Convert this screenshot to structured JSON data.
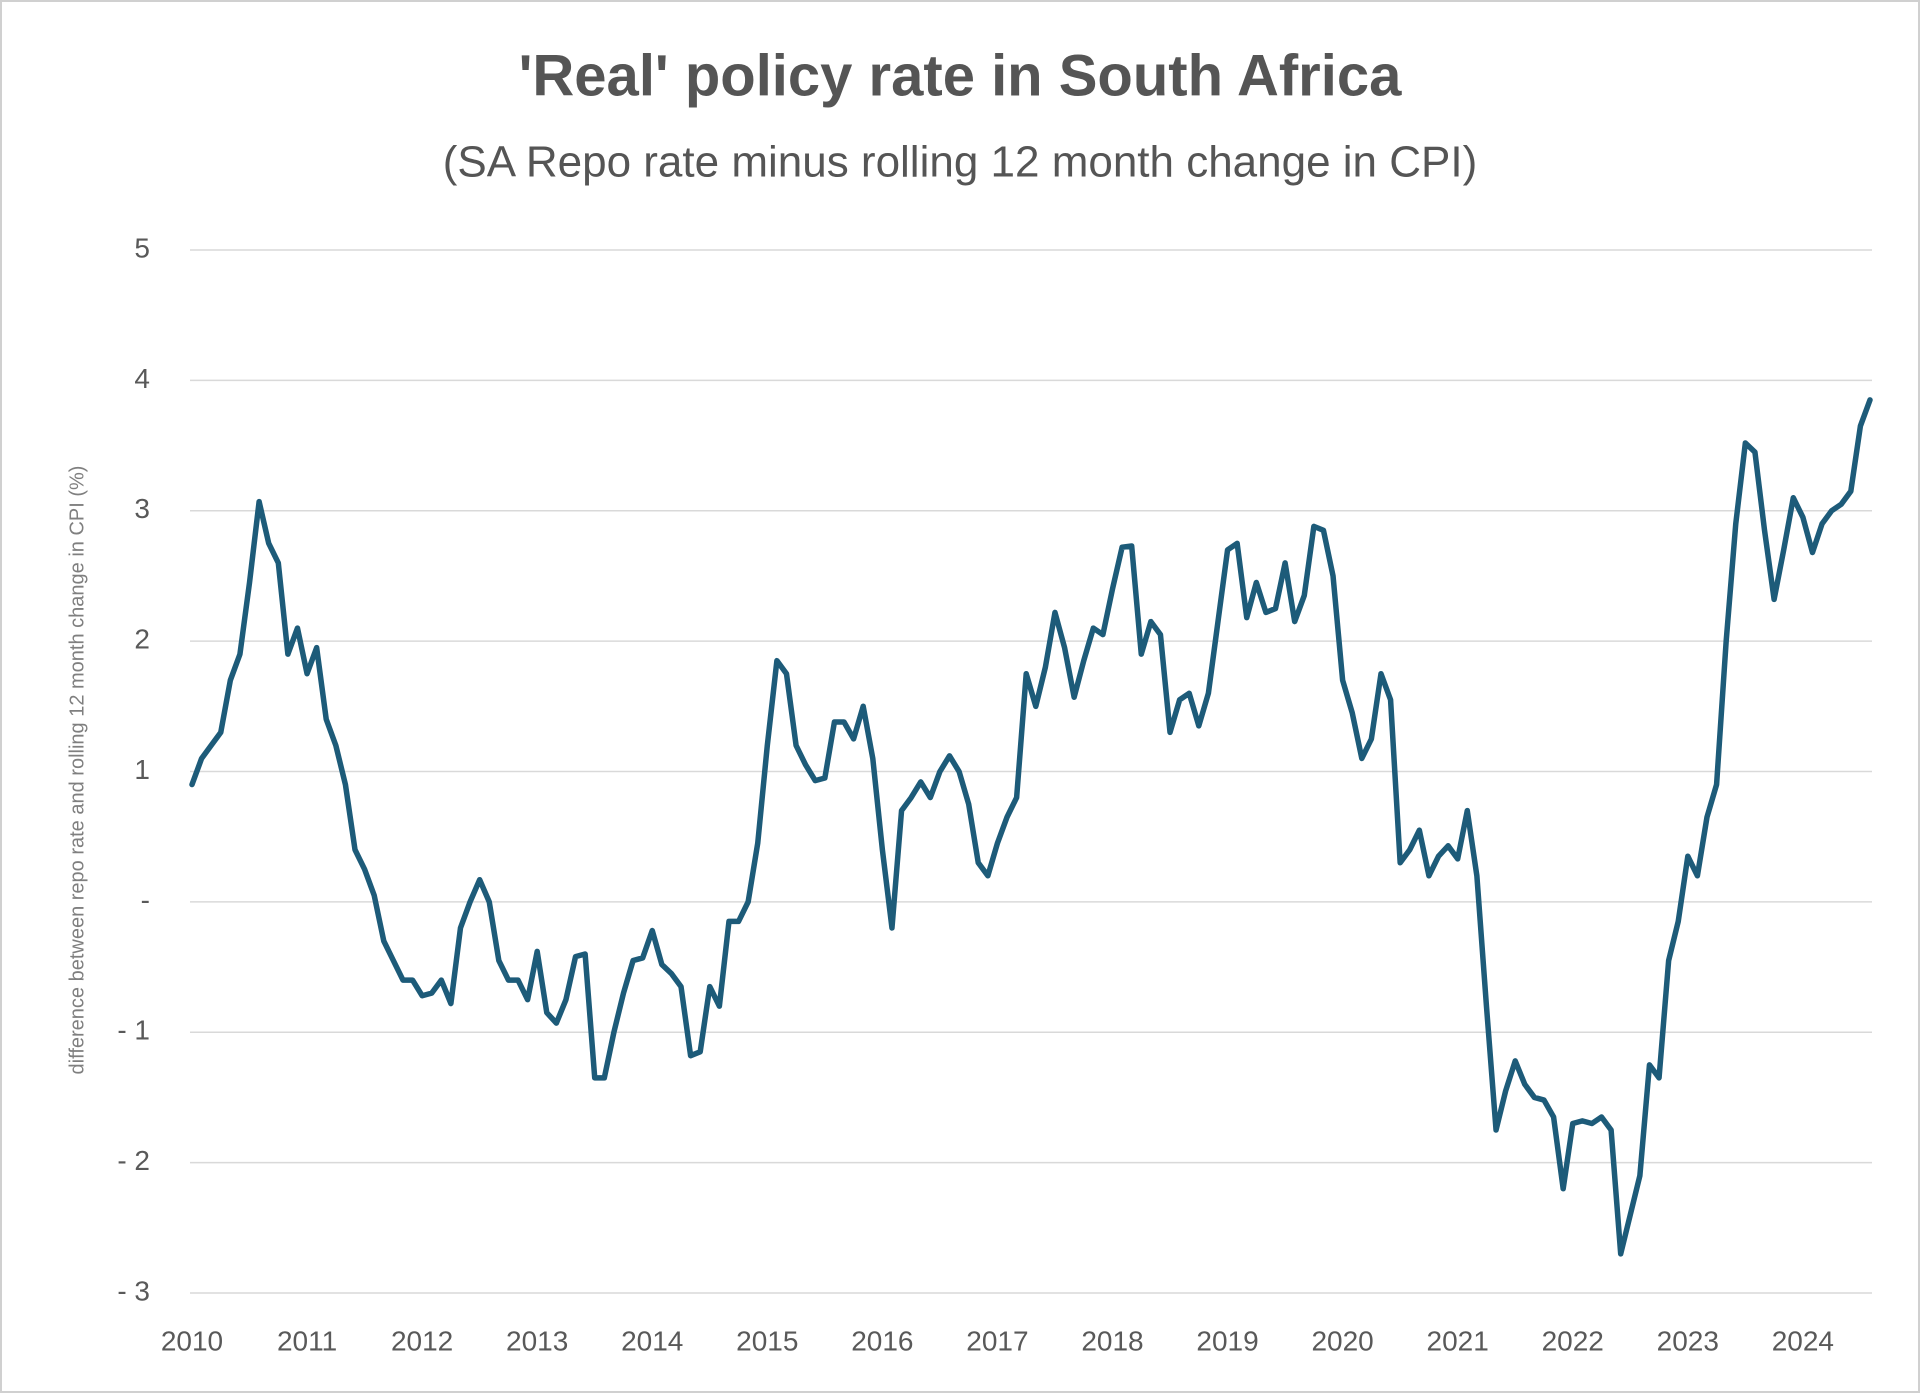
{
  "chart_data": {
    "type": "line",
    "title": "'Real' policy rate in South Africa",
    "subtitle": "(SA Repo rate minus rolling 12 month change in CPI)",
    "y_label": "difference between repo rate and rolling 12 month change in CPI (%)",
    "categories": [
      "2010",
      null,
      null,
      null,
      null,
      null,
      null,
      null,
      null,
      null,
      null,
      null,
      "2011",
      null,
      null,
      null,
      null,
      null,
      null,
      null,
      null,
      null,
      null,
      null,
      "2012",
      null,
      null,
      null,
      null,
      null,
      null,
      null,
      null,
      null,
      null,
      null,
      "2013",
      null,
      null,
      null,
      null,
      null,
      null,
      null,
      null,
      null,
      null,
      null,
      "2014",
      null,
      null,
      null,
      null,
      null,
      null,
      null,
      null,
      null,
      null,
      null,
      "2015",
      null,
      null,
      null,
      null,
      null,
      null,
      null,
      null,
      null,
      null,
      null,
      "2016",
      null,
      null,
      null,
      null,
      null,
      null,
      null,
      null,
      null,
      null,
      null,
      "2017",
      null,
      null,
      null,
      null,
      null,
      null,
      null,
      null,
      null,
      null,
      null,
      "2018",
      null,
      null,
      null,
      null,
      null,
      null,
      null,
      null,
      null,
      null,
      null,
      "2019",
      null,
      null,
      null,
      null,
      null,
      null,
      null,
      null,
      null,
      null,
      null,
      "2020",
      null,
      null,
      null,
      null,
      null,
      null,
      null,
      null,
      null,
      null,
      null,
      "2021",
      null,
      null,
      null,
      null,
      null,
      null,
      null,
      null,
      null,
      null,
      null,
      "2022",
      null,
      null,
      null,
      null,
      null,
      null,
      null,
      null,
      null,
      null,
      null,
      "2023",
      null,
      null,
      null,
      null,
      null,
      null,
      null,
      null,
      null,
      null,
      null,
      "2024",
      null,
      null,
      null,
      null,
      null,
      null,
      null
    ],
    "series": [
      {
        "name": "Real policy rate",
        "color": "#1d5b79",
        "values": [
          0.9,
          1.1,
          1.2,
          1.3,
          1.7,
          1.9,
          2.45,
          3.07,
          2.75,
          2.6,
          1.9,
          2.1,
          1.75,
          1.95,
          1.4,
          1.2,
          0.9,
          0.4,
          0.25,
          0.05,
          -0.3,
          -0.45,
          -0.6,
          -0.6,
          -0.72,
          -0.7,
          -0.6,
          -0.78,
          -0.2,
          0.0,
          0.17,
          0.0,
          -0.45,
          -0.6,
          -0.6,
          -0.75,
          -0.38,
          -0.85,
          -0.93,
          -0.75,
          -0.42,
          -0.4,
          -1.35,
          -1.35,
          -1.0,
          -0.7,
          -0.45,
          -0.43,
          -0.22,
          -0.48,
          -0.55,
          -0.65,
          -1.18,
          -1.15,
          -0.65,
          -0.8,
          -0.15,
          -0.15,
          0.0,
          0.45,
          1.2,
          1.85,
          1.75,
          1.2,
          1.05,
          0.93,
          0.95,
          1.38,
          1.38,
          1.25,
          1.5,
          1.1,
          0.4,
          -0.2,
          0.7,
          0.8,
          0.92,
          0.8,
          1.0,
          1.12,
          1.0,
          0.75,
          0.3,
          0.2,
          0.45,
          0.65,
          0.8,
          1.75,
          1.5,
          1.8,
          2.22,
          1.95,
          1.57,
          1.85,
          2.1,
          2.05,
          2.4,
          2.72,
          2.73,
          1.9,
          2.15,
          2.05,
          1.3,
          1.55,
          1.6,
          1.35,
          1.6,
          2.15,
          2.7,
          2.75,
          2.18,
          2.45,
          2.22,
          2.25,
          2.6,
          2.15,
          2.35,
          2.88,
          2.85,
          2.5,
          1.7,
          1.45,
          1.1,
          1.25,
          1.75,
          1.55,
          0.3,
          0.4,
          0.55,
          0.2,
          0.35,
          0.43,
          0.33,
          0.7,
          0.2,
          -0.8,
          -1.75,
          -1.45,
          -1.22,
          -1.4,
          -1.5,
          -1.52,
          -1.65,
          -2.2,
          -1.7,
          -1.68,
          -1.7,
          -1.65,
          -1.75,
          -2.7,
          -2.4,
          -2.1,
          -1.25,
          -1.35,
          -0.45,
          -0.15,
          0.35,
          0.2,
          0.65,
          0.9,
          2.0,
          2.9,
          3.52,
          3.45,
          2.85,
          2.32,
          2.7,
          3.1,
          2.95,
          2.68,
          2.9,
          3.0,
          3.05,
          3.15,
          3.65,
          3.85
        ]
      }
    ],
    "ylim": [
      -3,
      5
    ],
    "yticks": [
      {
        "value": -3,
        "label": "- 3"
      },
      {
        "value": -2,
        "label": "- 2"
      },
      {
        "value": -1,
        "label": "- 1"
      },
      {
        "value": 0,
        "label": "-"
      },
      1,
      2,
      3,
      4,
      5
    ],
    "grid": true
  }
}
